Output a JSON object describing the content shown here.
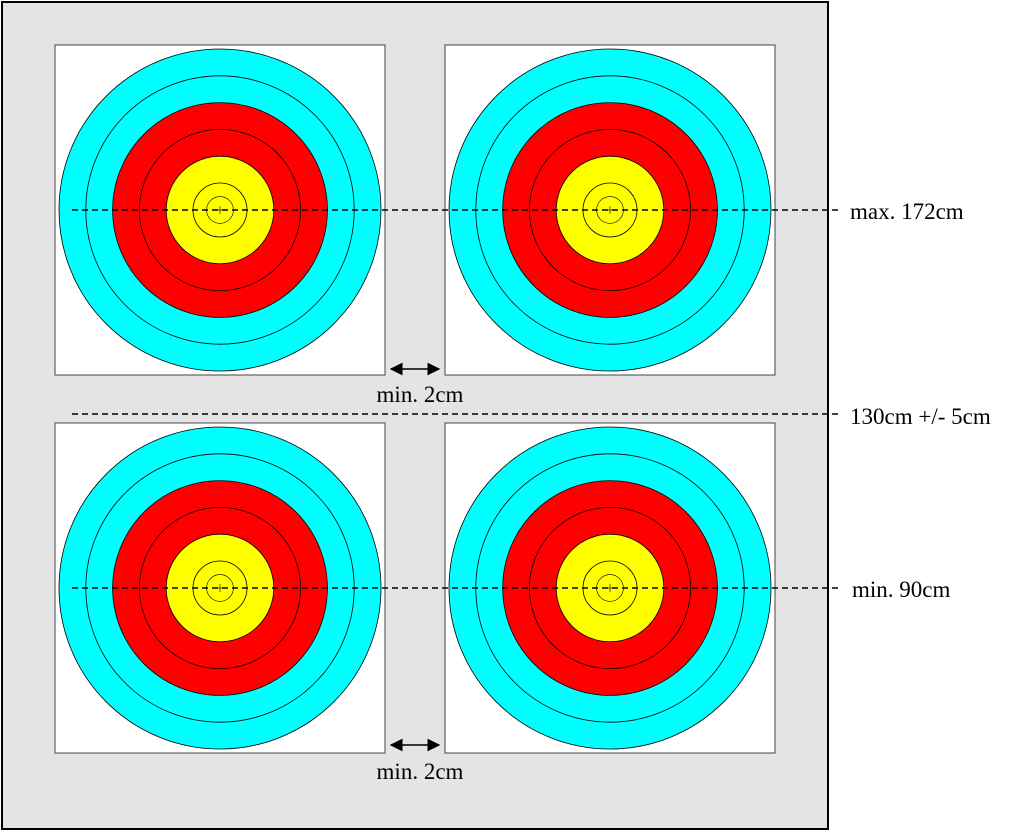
{
  "labels": {
    "top_line": "max. 172cm",
    "middle_line": "130cm +/- 5cm",
    "bottom_line": "min. 90cm",
    "gap_top": "min. 2cm",
    "gap_bottom": "min. 2cm"
  },
  "colors": {
    "boss": "#e4e4e4",
    "face": "#ffffff",
    "blue": "#00ffff",
    "red": "#ff0000",
    "gold": "#ffff00",
    "lines": "#000000"
  },
  "targets": [
    {
      "name": "target-top-left"
    },
    {
      "name": "target-top-right"
    },
    {
      "name": "target-bottom-left"
    },
    {
      "name": "target-bottom-right"
    }
  ]
}
